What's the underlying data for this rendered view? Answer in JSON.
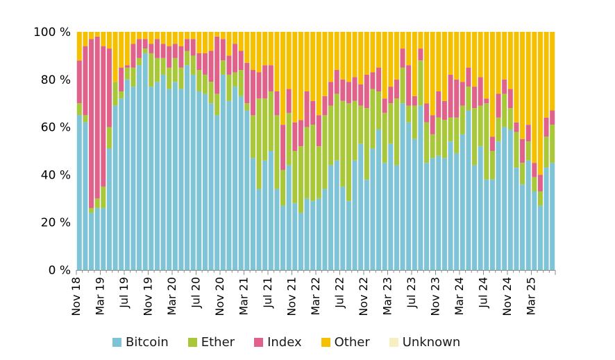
{
  "chart_data": {
    "type": "bar",
    "stacked": true,
    "title": "",
    "xlabel": "",
    "ylabel": "",
    "ylim": [
      0,
      100
    ],
    "y_ticks": [
      "0 %",
      "20 %",
      "40 %",
      "60 %",
      "80 %",
      "100 %"
    ],
    "x_tick_labels": [
      "Nov 18",
      "Mar 19",
      "Jul 19",
      "Nov 19",
      "Mar 20",
      "Jul 20",
      "Nov 20",
      "Mar 21",
      "Jul 21",
      "Nov 21",
      "Mar 22",
      "Jul 22",
      "Nov 22",
      "Mar 23",
      "Jul 23",
      "Nov 23",
      "Mar 24",
      "Jul 24",
      "Nov 24",
      "Mar 25"
    ],
    "grid": false,
    "legend_placement": "bottom",
    "colors": {
      "Bitcoin": "#7ec4d6",
      "Ether": "#a8c83a",
      "Index": "#e0628a",
      "Other": "#f5c000",
      "Unknown": "#f7efbf"
    },
    "series": [
      {
        "name": "Bitcoin",
        "values": [
          65,
          62,
          24,
          26,
          26,
          51,
          69,
          72,
          80,
          77,
          86,
          91,
          77,
          79,
          82,
          76,
          79,
          76,
          86,
          82,
          75,
          74,
          70,
          65,
          82,
          71,
          77,
          73,
          67,
          47,
          34,
          46,
          50,
          34,
          27,
          44,
          28,
          24,
          30,
          29,
          30,
          34,
          44,
          46,
          35,
          29,
          46,
          53,
          38,
          51,
          59,
          45,
          53,
          44,
          70,
          62,
          55,
          69,
          45,
          47,
          48,
          47,
          54,
          49,
          57,
          67,
          44,
          52,
          38,
          38,
          54,
          60,
          59,
          43,
          36,
          46,
          33,
          27,
          43,
          45
        ]
      },
      {
        "name": "Ether",
        "values": [
          5,
          3,
          2,
          4,
          9,
          9,
          10,
          3,
          5,
          8,
          3,
          2,
          14,
          10,
          7,
          9,
          10,
          9,
          6,
          8,
          9,
          8,
          9,
          9,
          6,
          11,
          6,
          11,
          3,
          18,
          38,
          26,
          25,
          31,
          15,
          22,
          22,
          28,
          30,
          32,
          22,
          31,
          25,
          28,
          36,
          41,
          25,
          16,
          30,
          25,
          16,
          21,
          17,
          28,
          15,
          7,
          14,
          19,
          17,
          10,
          16,
          16,
          10,
          15,
          12,
          10,
          24,
          17,
          32,
          12,
          10,
          14,
          9,
          15,
          9,
          8,
          6,
          6,
          13,
          16
        ]
      },
      {
        "name": "Index",
        "values": [
          18,
          29,
          71,
          68,
          59,
          33,
          0,
          10,
          1,
          10,
          8,
          4,
          4,
          8,
          6,
          9,
          6,
          9,
          5,
          7,
          7,
          9,
          13,
          24,
          9,
          8,
          12,
          8,
          17,
          19,
          11,
          14,
          11,
          10,
          19,
          10,
          12,
          11,
          15,
          10,
          13,
          8,
          10,
          10,
          9,
          9,
          10,
          9,
          14,
          7,
          10,
          6,
          7,
          8,
          8,
          17,
          4,
          5,
          8,
          8,
          11,
          8,
          18,
          16,
          10,
          8,
          9,
          12,
          2,
          6,
          10,
          6,
          8,
          4,
          10,
          7,
          6,
          7,
          8,
          6
        ]
      },
      {
        "name": "Other",
        "values": [
          12,
          6,
          3,
          2,
          6,
          7,
          21,
          15,
          14,
          5,
          3,
          3,
          5,
          3,
          5,
          6,
          5,
          6,
          3,
          3,
          9,
          9,
          8,
          2,
          3,
          10,
          5,
          8,
          13,
          16,
          17,
          14,
          14,
          25,
          39,
          24,
          38,
          37,
          25,
          29,
          35,
          27,
          21,
          16,
          20,
          21,
          19,
          22,
          18,
          17,
          15,
          28,
          23,
          20,
          7,
          14,
          27,
          7,
          30,
          35,
          25,
          29,
          18,
          20,
          21,
          15,
          23,
          19,
          28,
          44,
          26,
          20,
          24,
          38,
          45,
          39,
          55,
          60,
          36,
          33
        ]
      },
      {
        "name": "Unknown",
        "values": [
          0,
          0,
          0,
          0,
          0,
          0,
          0,
          0,
          0,
          0,
          0,
          0,
          0,
          0,
          0,
          0,
          0,
          0,
          0,
          0,
          0,
          0,
          0,
          0,
          0,
          0,
          0,
          0,
          0,
          0,
          0,
          0,
          0,
          0,
          0,
          0,
          0,
          0,
          0,
          0,
          0,
          0,
          0,
          0,
          0,
          0,
          0,
          0,
          0,
          0,
          0,
          0,
          0,
          0,
          0,
          0,
          0,
          0,
          0,
          0,
          0,
          0,
          0,
          0,
          0,
          0,
          0,
          0,
          0,
          0,
          0,
          0,
          0,
          0,
          0,
          0,
          0,
          0,
          0,
          0
        ]
      }
    ]
  }
}
